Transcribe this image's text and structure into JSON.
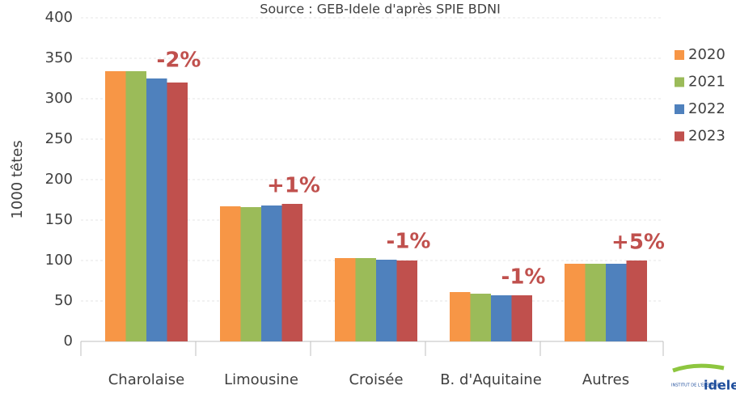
{
  "chart_data": {
    "type": "bar",
    "subtitle": "Source : GEB-Idele d'après SPIE BDNI",
    "y_label": "1000 têtes",
    "categories": [
      "Charolaise",
      "Limousine",
      "Croisée",
      "B. d'Aquitaine",
      "Autres"
    ],
    "series": [
      {
        "name": "2020",
        "color": "#f79646",
        "values": [
          334,
          167,
          103,
          61,
          96
        ]
      },
      {
        "name": "2021",
        "color": "#9bbb59",
        "values": [
          334,
          166,
          103,
          59,
          96
        ]
      },
      {
        "name": "2022",
        "color": "#4f81bd",
        "values": [
          325,
          168,
          101,
          57,
          96
        ]
      },
      {
        "name": "2023",
        "color": "#c0504d",
        "values": [
          320,
          170,
          100,
          57,
          100
        ]
      }
    ],
    "annotations": [
      "-2%",
      "+1%",
      "-1%",
      "-1%",
      "+5%"
    ],
    "ylim": [
      0,
      400
    ],
    "yticks": [
      0,
      50,
      100,
      150,
      200,
      250,
      300,
      350,
      400
    ],
    "grid": true,
    "legend": "right",
    "logo": {
      "top": "INSTITUT DE L'ELEVAGE",
      "name": "idele"
    }
  }
}
